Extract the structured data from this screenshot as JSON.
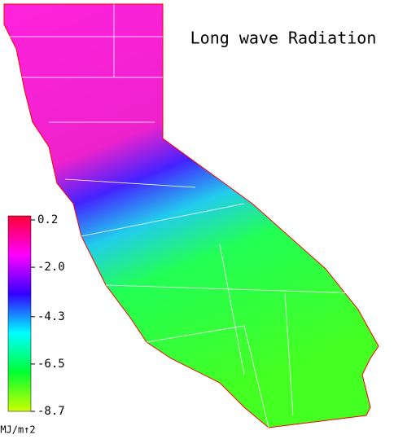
{
  "title": "Long wave Radiation",
  "colorbar": {
    "lim": [
      -8.7,
      0.2
    ],
    "ticks": [
      0.2,
      {
        "value": -2,
        "label": "-2.0"
      },
      -4.3,
      -6.5,
      -8.7
    ],
    "colors": [
      "#ff0033",
      "#ff00ff",
      "#3300ff",
      "#00ffff",
      "#00ff33",
      "#ccff00"
    ],
    "unit": "MJ/m↑2"
  }
}
